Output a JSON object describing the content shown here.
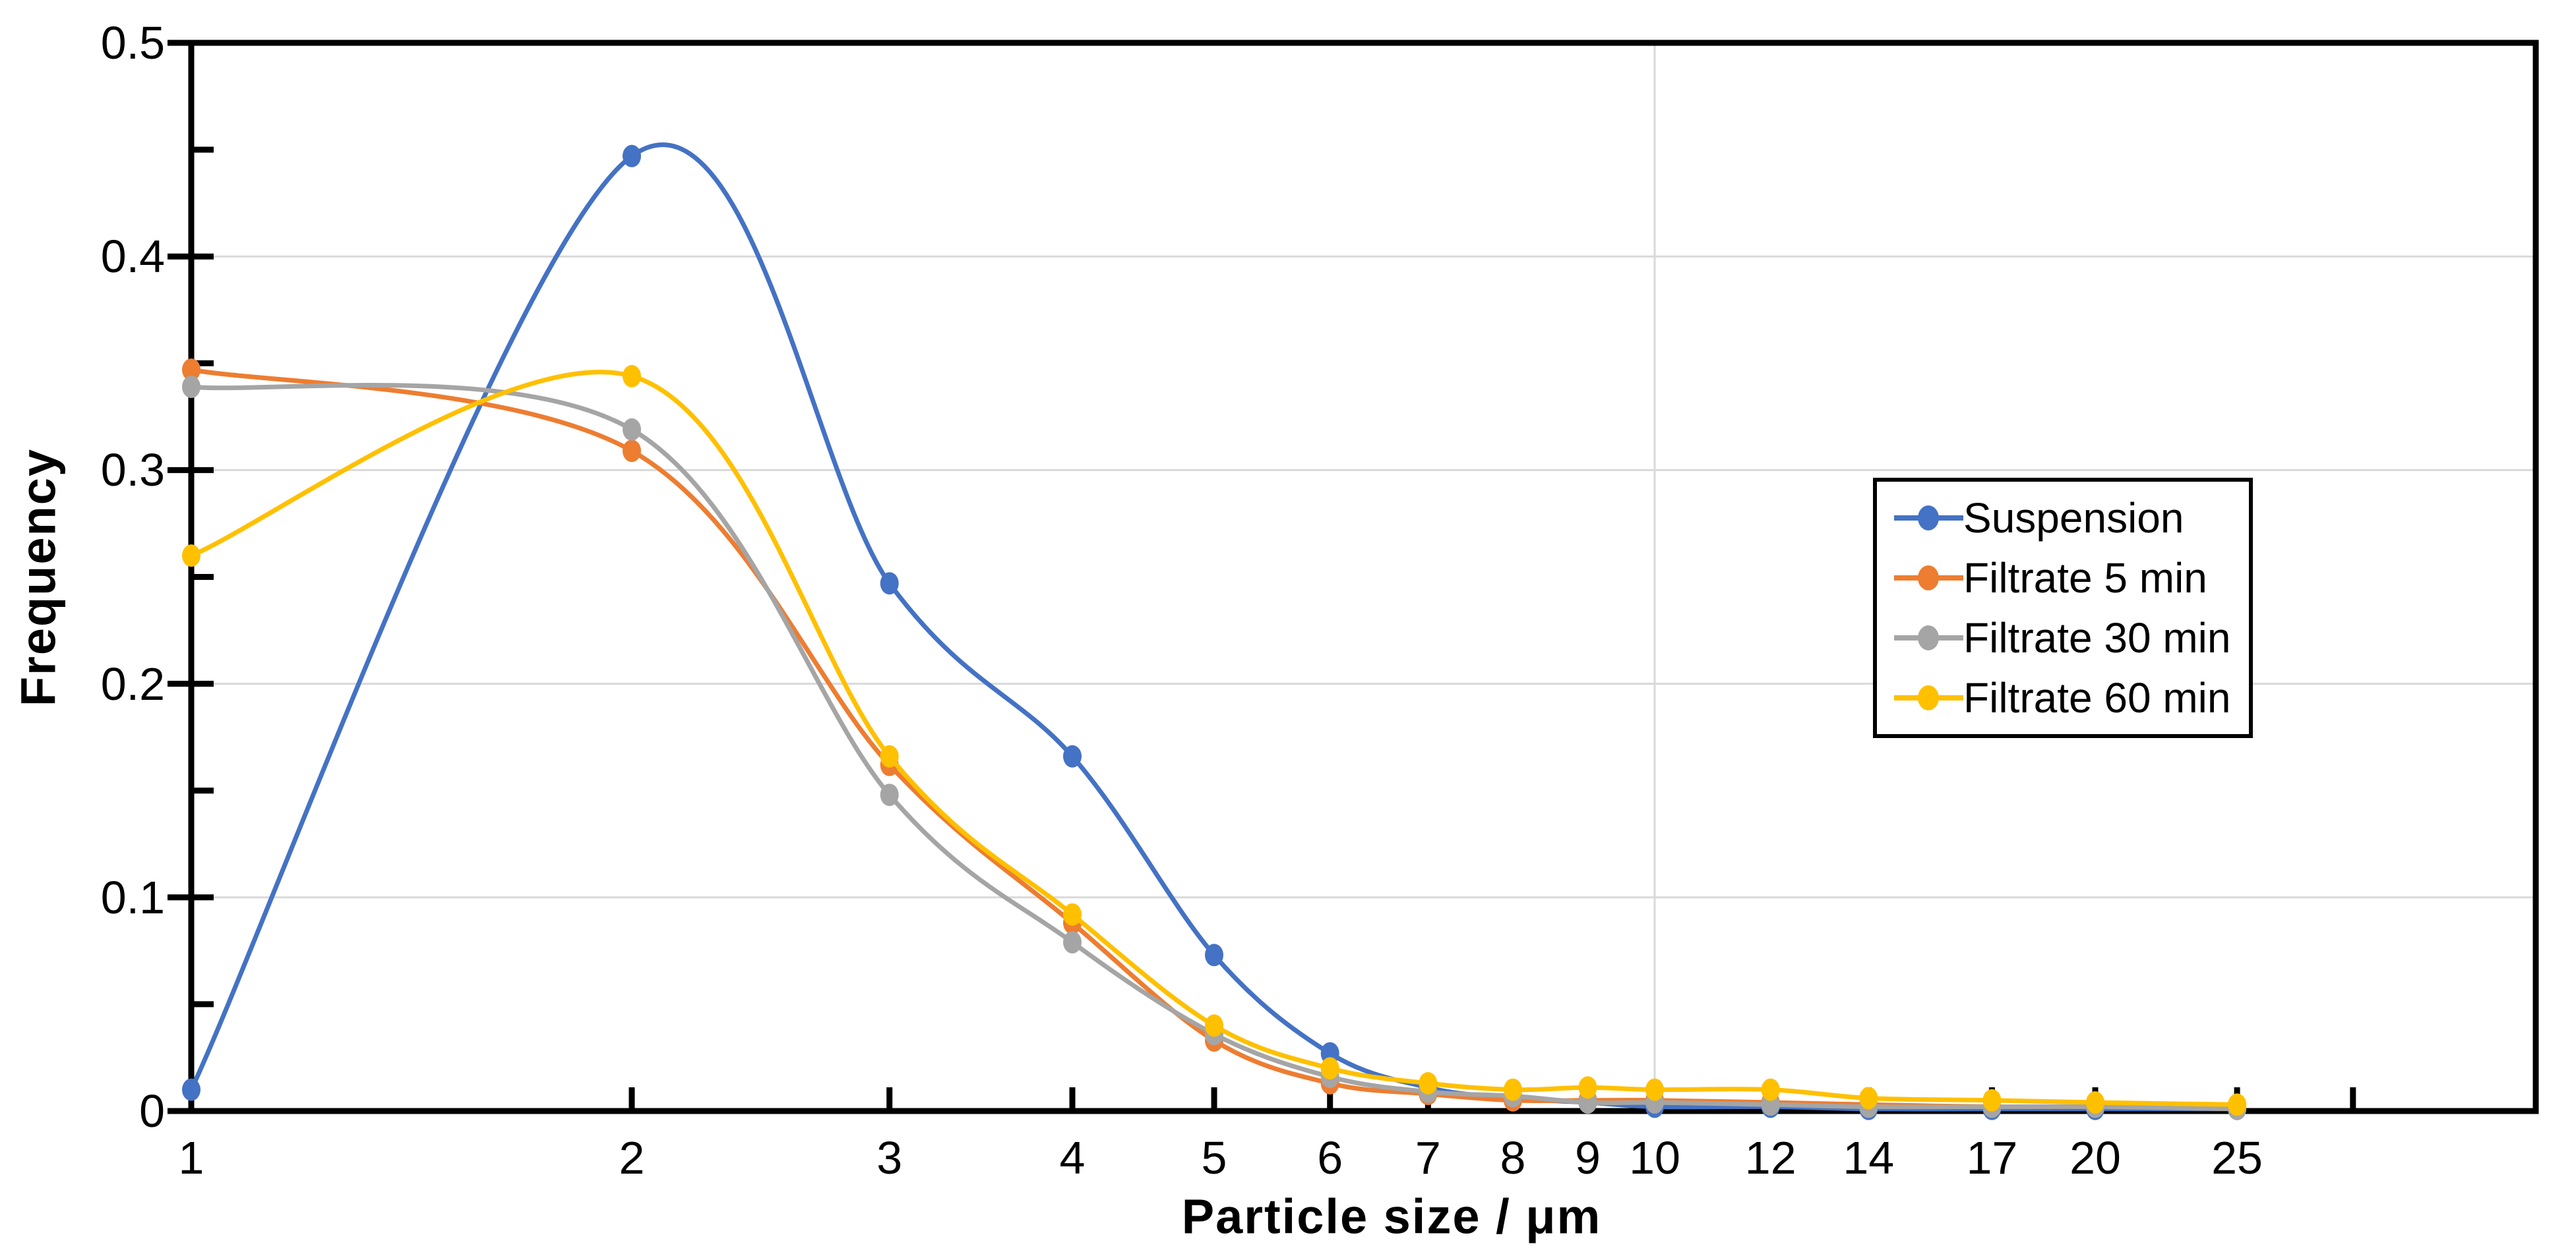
{
  "chart_data": {
    "type": "line",
    "title": "",
    "xlabel": "Particle size / μm",
    "ylabel": "Frequency",
    "x_scale": "log",
    "x_range": [
      1,
      40
    ],
    "ylim": [
      0,
      0.5
    ],
    "y_tick_labels": [
      "0",
      "0.1",
      "0.2",
      "0.3",
      "0.4",
      "0.5"
    ],
    "y_tick_values": [
      0,
      0.1,
      0.2,
      0.3,
      0.4,
      0.5
    ],
    "y_minor_tick_values": [
      0.05,
      0.15,
      0.25,
      0.35,
      0.45
    ],
    "grid_horizontal_values": [
      0.1,
      0.2,
      0.3,
      0.4
    ],
    "grid_vertical_values": [
      10
    ],
    "x_unlabeled_tick_values": [
      30
    ],
    "grid_on": true,
    "legend_position": "right-middle",
    "categories": [
      1,
      2,
      3,
      4,
      5,
      6,
      7,
      8,
      9,
      10,
      12,
      14,
      17,
      20,
      25
    ],
    "series": [
      {
        "name": "Suspension",
        "color": "#4472C4",
        "values": [
          0.01,
          0.447,
          0.247,
          0.166,
          0.073,
          0.027,
          0.011,
          0.006,
          0.004,
          0.002,
          0.002,
          0.001,
          0.001,
          0.001,
          0.001
        ]
      },
      {
        "name": "Filtrate 5 min",
        "color": "#ED7D31",
        "values": [
          0.347,
          0.309,
          0.162,
          0.088,
          0.033,
          0.013,
          0.008,
          0.005,
          0.005,
          0.005,
          0.004,
          0.003,
          0.002,
          0.002,
          0.001
        ]
      },
      {
        "name": "Filtrate 30 min",
        "color": "#A5A5A5",
        "values": [
          0.339,
          0.319,
          0.148,
          0.079,
          0.036,
          0.016,
          0.009,
          0.007,
          0.004,
          0.004,
          0.003,
          0.002,
          0.002,
          0.002,
          0.001
        ]
      },
      {
        "name": "Filtrate 60 min",
        "color": "#FFC000",
        "values": [
          0.26,
          0.344,
          0.166,
          0.092,
          0.04,
          0.02,
          0.013,
          0.01,
          0.011,
          0.01,
          0.01,
          0.006,
          0.005,
          0.004,
          0.003
        ]
      }
    ],
    "colors": {
      "grid": "#D9D9D9",
      "axis": "#000000",
      "background": "#FFFFFF"
    }
  }
}
